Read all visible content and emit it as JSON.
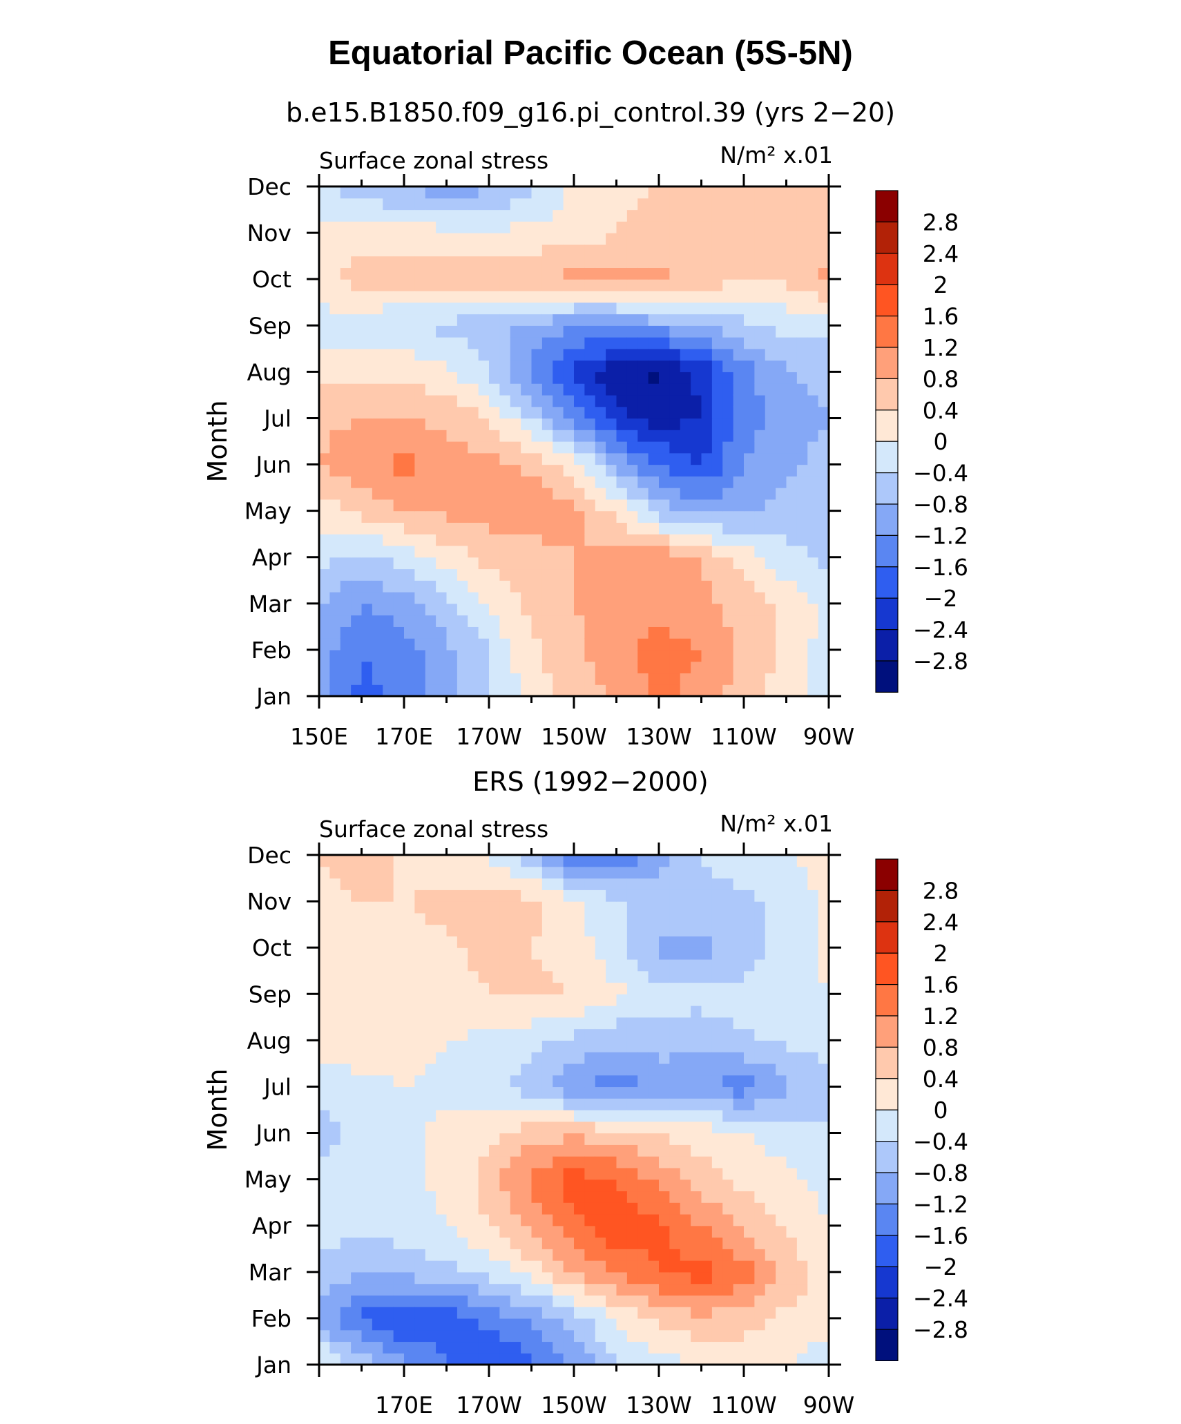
{
  "figure": {
    "title": "Equatorial Pacific Ocean (5S-5N)"
  },
  "color_scale": {
    "levels": [
      "2.8",
      "2.4",
      "2",
      "1.6",
      "1.2",
      "0.8",
      "0.4",
      "0",
      "−0.4",
      "−0.8",
      "−1.2",
      "−1.6",
      "−2",
      "−2.4",
      "−2.8"
    ],
    "colors": [
      "#8b0000",
      "#b22207",
      "#dd3311",
      "#ff5522",
      "#ff7744",
      "#ffa07a",
      "#ffc9ad",
      "#ffe8d6",
      "#d4e8fb",
      "#adc8fa",
      "#85a8f6",
      "#5a86f2",
      "#2f5ef0",
      "#1638d0",
      "#0b1fa8",
      "#00107d"
    ]
  },
  "chart_data": [
    {
      "type": "heatmap",
      "subtitle": "b.e15.B1850.f09_g16.pi_control.39 (yrs 2−20)",
      "field_label": "Surface zonal stress",
      "units_label": "N/m² x.01",
      "ylabel": "Month",
      "xlabel": "",
      "x_ticks": [
        "150E",
        "170E",
        "170W",
        "150W",
        "130W",
        "110W",
        "90W"
      ],
      "y_ticks": [
        "Jan",
        "Feb",
        "Mar",
        "Apr",
        "May",
        "Jun",
        "Jul",
        "Aug",
        "Sep",
        "Oct",
        "Nov",
        "Dec"
      ],
      "xlim": [
        150,
        270
      ],
      "ylim": [
        "Jan",
        "Dec"
      ],
      "x_grid": [
        150,
        160,
        170,
        180,
        190,
        200,
        210,
        220,
        230,
        240,
        250,
        260,
        270
      ],
      "values": [
        [
          -1.0,
          -1.7,
          -1.5,
          -1.0,
          -0.5,
          0.2,
          0.6,
          0.9,
          1.3,
          1.0,
          0.6,
          0.2,
          -0.2
        ],
        [
          -1.0,
          -1.6,
          -1.4,
          -0.9,
          -0.4,
          0.3,
          0.7,
          1.0,
          1.4,
          1.2,
          0.7,
          0.3,
          -0.2
        ],
        [
          -0.8,
          -1.2,
          -1.0,
          -0.5,
          0.1,
          0.5,
          0.8,
          0.9,
          1.0,
          0.9,
          0.6,
          0.3,
          -0.1
        ],
        [
          -0.3,
          -0.5,
          -0.2,
          0.2,
          0.5,
          0.6,
          0.8,
          0.9,
          1.1,
          0.8,
          0.2,
          -0.3,
          -0.5
        ],
        [
          0.2,
          0.5,
          0.8,
          0.9,
          1.0,
          1.1,
          0.9,
          0.3,
          -0.6,
          -1.0,
          -0.9,
          -0.6,
          -0.5
        ],
        [
          0.8,
          1.1,
          1.3,
          1.0,
          0.9,
          0.7,
          0.2,
          -0.9,
          -1.6,
          -2.0,
          -1.2,
          -0.9,
          -0.6
        ],
        [
          0.7,
          0.8,
          0.8,
          0.7,
          0.4,
          -0.4,
          -1.4,
          -2.2,
          -2.6,
          -2.4,
          -1.3,
          -1.1,
          -0.8
        ],
        [
          0.2,
          0.3,
          0.3,
          0.1,
          -0.4,
          -1.3,
          -2.1,
          -2.7,
          -2.9,
          -2.3,
          -1.4,
          -0.8,
          -0.6
        ],
        [
          -0.2,
          -0.3,
          -0.4,
          -0.5,
          -0.7,
          -0.9,
          -1.2,
          -1.2,
          -1.0,
          -0.8,
          -0.5,
          -0.3,
          -0.3
        ],
        [
          0.3,
          0.6,
          0.6,
          0.6,
          0.7,
          0.8,
          0.9,
          0.9,
          0.9,
          0.7,
          0.4,
          0.5,
          0.9
        ],
        [
          0.2,
          0.2,
          0.2,
          0.1,
          0.1,
          0.1,
          0.2,
          0.4,
          0.5,
          0.6,
          0.6,
          0.6,
          0.5
        ],
        [
          -0.3,
          -0.6,
          -0.9,
          -1.0,
          -0.9,
          -0.5,
          0.1,
          0.3,
          0.4,
          0.5,
          0.5,
          0.4,
          0.4
        ]
      ]
    },
    {
      "type": "heatmap",
      "subtitle": "ERS (1992−2000)",
      "field_label": "Surface zonal stress",
      "units_label": "N/m² x.01",
      "ylabel": "Month",
      "xlabel": "",
      "x_ticks": [
        "170E",
        "170W",
        "150W",
        "130W",
        "110W",
        "90W"
      ],
      "y_ticks": [
        "Jan",
        "Feb",
        "Mar",
        "Apr",
        "May",
        "Jun",
        "Jul",
        "Aug",
        "Sep",
        "Oct",
        "Nov",
        "Dec"
      ],
      "xlim": [
        150,
        270
      ],
      "ylim": [
        "Jan",
        "Dec"
      ],
      "x_grid": [
        150,
        160,
        170,
        180,
        190,
        200,
        210,
        220,
        230,
        240,
        250,
        260,
        270
      ],
      "values": [
        [
          0.1,
          -0.5,
          -1.1,
          -1.6,
          -2.0,
          -1.7,
          -1.1,
          -0.5,
          -0.2,
          0.0,
          0.1,
          0.0,
          -0.2
        ],
        [
          -1.0,
          -1.7,
          -2.0,
          -1.8,
          -1.5,
          -1.1,
          -0.6,
          0.1,
          0.5,
          0.7,
          0.6,
          0.3,
          0.1
        ],
        [
          -0.5,
          -0.8,
          -0.7,
          -0.5,
          -0.3,
          0.2,
          0.8,
          1.3,
          1.6,
          1.8,
          1.4,
          0.7,
          0.2
        ],
        [
          -0.2,
          -0.3,
          -0.2,
          0.0,
          0.4,
          0.9,
          1.5,
          1.9,
          1.7,
          1.2,
          0.7,
          0.3,
          0.0
        ],
        [
          -0.2,
          -0.2,
          -0.1,
          0.1,
          0.6,
          1.3,
          1.8,
          1.6,
          1.1,
          0.6,
          0.3,
          0.1,
          -0.1
        ],
        [
          -0.6,
          -0.3,
          -0.1,
          0.1,
          0.3,
          0.6,
          0.7,
          0.6,
          0.4,
          0.2,
          0.0,
          -0.2,
          -0.3
        ],
        [
          -0.2,
          -0.1,
          0.0,
          -0.1,
          -0.3,
          -0.6,
          -1.2,
          -1.4,
          -1.1,
          -1.2,
          -1.4,
          -0.9,
          -0.6
        ],
        [
          0.1,
          0.2,
          0.2,
          0.0,
          -0.1,
          -0.3,
          -0.5,
          -0.7,
          -0.6,
          -0.6,
          -0.5,
          -0.3,
          -0.2
        ],
        [
          0.2,
          0.3,
          0.2,
          0.3,
          0.4,
          0.5,
          0.4,
          0.1,
          -0.2,
          -0.3,
          -0.2,
          -0.1,
          0.0
        ],
        [
          0.2,
          0.4,
          0.3,
          0.3,
          0.5,
          0.4,
          0.2,
          -0.3,
          -0.9,
          -0.9,
          -0.7,
          -0.2,
          0.1
        ],
        [
          0.3,
          0.4,
          0.4,
          0.5,
          0.7,
          0.5,
          0.1,
          -0.3,
          -0.6,
          -0.6,
          -0.5,
          -0.2,
          0.1
        ],
        [
          0.4,
          0.6,
          0.3,
          0.2,
          -0.1,
          -0.6,
          -1.8,
          -1.6,
          -0.9,
          -0.4,
          -0.1,
          0.0,
          0.1
        ]
      ]
    }
  ]
}
